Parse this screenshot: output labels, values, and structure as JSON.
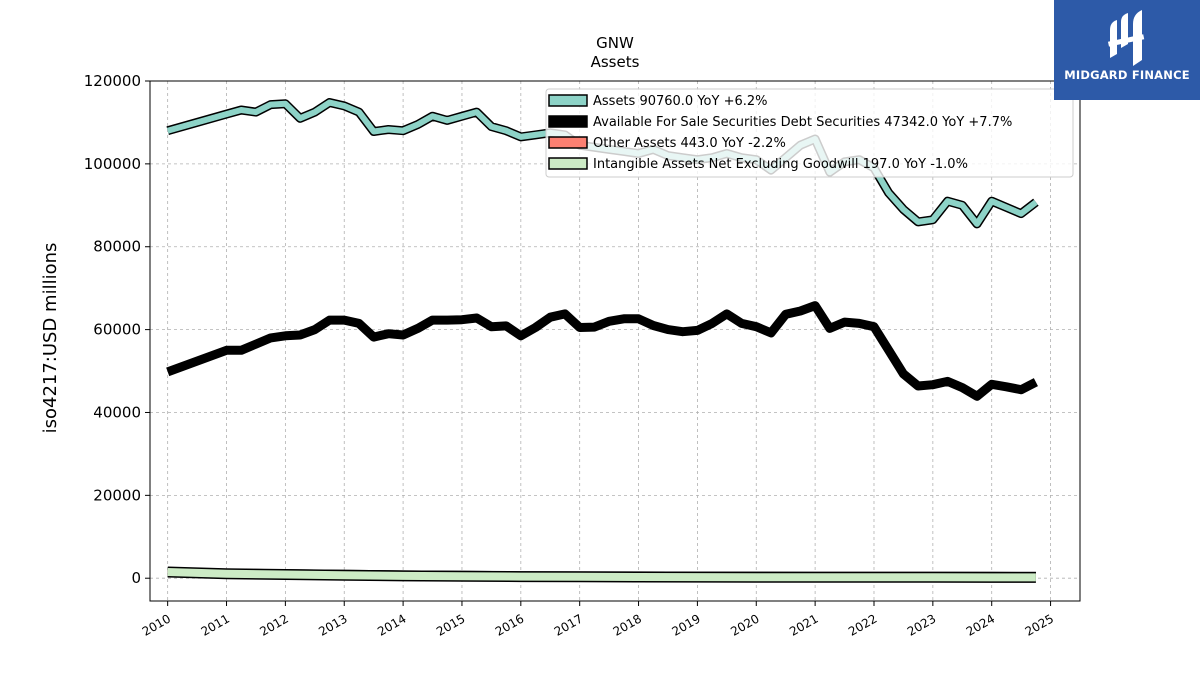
{
  "chart_data": {
    "type": "line",
    "title": "GNW",
    "subtitle": "Assets",
    "ylabel": "iso4217:USD  millions",
    "xlabel": "",
    "xlim": [
      2009.7,
      2025.5
    ],
    "ylim": [
      -5500,
      120000
    ],
    "yticks": [
      0,
      20000,
      40000,
      60000,
      80000,
      100000,
      120000
    ],
    "ytick_labels": [
      "0",
      "20000",
      "40000",
      "60000",
      "80000",
      "100000",
      "120000"
    ],
    "xticks": [
      2010,
      2011,
      2012,
      2013,
      2014,
      2015,
      2016,
      2017,
      2018,
      2019,
      2020,
      2021,
      2022,
      2023,
      2024,
      2025
    ],
    "xtick_labels": [
      "2010",
      "2011",
      "2012",
      "2013",
      "2014",
      "2015",
      "2016",
      "2017",
      "2018",
      "2019",
      "2020",
      "2021",
      "2022",
      "2023",
      "2024",
      "2025"
    ],
    "grid": true,
    "legend_position": "top-right",
    "series": [
      {
        "name": "Assets  90760.0 YoY +6.2%",
        "color": "#8dd3c7",
        "points": [
          [
            2010.0,
            108000
          ],
          [
            2011.0,
            112000
          ],
          [
            2011.25,
            113000
          ],
          [
            2011.5,
            112500
          ],
          [
            2011.75,
            114300
          ],
          [
            2012.0,
            114500
          ],
          [
            2012.25,
            111000
          ],
          [
            2012.5,
            112500
          ],
          [
            2012.75,
            114800
          ],
          [
            2013.0,
            114000
          ],
          [
            2013.25,
            112500
          ],
          [
            2013.5,
            107800
          ],
          [
            2013.75,
            108300
          ],
          [
            2014.0,
            108000
          ],
          [
            2014.25,
            109500
          ],
          [
            2014.5,
            111500
          ],
          [
            2014.75,
            110500
          ],
          [
            2015.0,
            111500
          ],
          [
            2015.25,
            112500
          ],
          [
            2015.5,
            109000
          ],
          [
            2015.75,
            108000
          ],
          [
            2016.0,
            106500
          ],
          [
            2016.25,
            107000
          ],
          [
            2016.5,
            107500
          ],
          [
            2016.75,
            107000
          ],
          [
            2017.0,
            104500
          ],
          [
            2017.25,
            104000
          ],
          [
            2017.5,
            103500
          ],
          [
            2017.75,
            103000
          ],
          [
            2018.0,
            102500
          ],
          [
            2018.25,
            103500
          ],
          [
            2018.5,
            102000
          ],
          [
            2018.75,
            101500
          ],
          [
            2019.0,
            101000
          ],
          [
            2019.25,
            101500
          ],
          [
            2019.5,
            102500
          ],
          [
            2019.75,
            101500
          ],
          [
            2020.0,
            101000
          ],
          [
            2020.25,
            98500
          ],
          [
            2020.5,
            101500
          ],
          [
            2020.75,
            104500
          ],
          [
            2021.0,
            106000
          ],
          [
            2021.25,
            98000
          ],
          [
            2021.5,
            100500
          ],
          [
            2021.75,
            101000
          ],
          [
            2022.0,
            99000
          ],
          [
            2022.25,
            93000
          ],
          [
            2022.5,
            89000
          ],
          [
            2022.75,
            86000
          ],
          [
            2023.0,
            86500
          ],
          [
            2023.25,
            91000
          ],
          [
            2023.5,
            90000
          ],
          [
            2023.75,
            85500
          ],
          [
            2024.0,
            91000
          ],
          [
            2024.25,
            89500
          ],
          [
            2024.5,
            88000
          ],
          [
            2024.75,
            90760
          ]
        ]
      },
      {
        "name": "Available For Sale Securities Debt Securities  47342.0 YoY +7.7%",
        "color": "#000000",
        "points": [
          [
            2010.0,
            49800
          ],
          [
            2011.0,
            55000
          ],
          [
            2011.25,
            55000
          ],
          [
            2011.5,
            56500
          ],
          [
            2011.75,
            58000
          ],
          [
            2012.0,
            58500
          ],
          [
            2012.25,
            58700
          ],
          [
            2012.5,
            60000
          ],
          [
            2012.75,
            62300
          ],
          [
            2013.0,
            62300
          ],
          [
            2013.25,
            61500
          ],
          [
            2013.5,
            58200
          ],
          [
            2013.75,
            59000
          ],
          [
            2014.0,
            58700
          ],
          [
            2014.25,
            60300
          ],
          [
            2014.5,
            62300
          ],
          [
            2014.75,
            62300
          ],
          [
            2015.0,
            62400
          ],
          [
            2015.25,
            62800
          ],
          [
            2015.5,
            60700
          ],
          [
            2015.75,
            60900
          ],
          [
            2016.0,
            58500
          ],
          [
            2016.25,
            60500
          ],
          [
            2016.5,
            63000
          ],
          [
            2016.75,
            63800
          ],
          [
            2017.0,
            60500
          ],
          [
            2017.25,
            60600
          ],
          [
            2017.5,
            62000
          ],
          [
            2017.75,
            62600
          ],
          [
            2018.0,
            62600
          ],
          [
            2018.25,
            61000
          ],
          [
            2018.5,
            60000
          ],
          [
            2018.75,
            59500
          ],
          [
            2019.0,
            59800
          ],
          [
            2019.25,
            61500
          ],
          [
            2019.5,
            63800
          ],
          [
            2019.75,
            61500
          ],
          [
            2020.0,
            60700
          ],
          [
            2020.25,
            59200
          ],
          [
            2020.5,
            63700
          ],
          [
            2020.75,
            64500
          ],
          [
            2021.0,
            65800
          ],
          [
            2021.25,
            60300
          ],
          [
            2021.5,
            61800
          ],
          [
            2021.75,
            61500
          ],
          [
            2022.0,
            60700
          ],
          [
            2022.25,
            55000
          ],
          [
            2022.5,
            49300
          ],
          [
            2022.75,
            46400
          ],
          [
            2023.0,
            46700
          ],
          [
            2023.25,
            47500
          ],
          [
            2023.5,
            46000
          ],
          [
            2023.75,
            43900
          ],
          [
            2024.0,
            46800
          ],
          [
            2024.25,
            46200
          ],
          [
            2024.5,
            45500
          ],
          [
            2024.75,
            47342
          ]
        ]
      },
      {
        "name": "Other Assets  443.0 YoY -2.2%",
        "color": "#fb8072",
        "points": [
          [
            2010.0,
            1400
          ],
          [
            2011.0,
            1200
          ],
          [
            2012.0,
            1100
          ],
          [
            2013.0,
            950
          ],
          [
            2014.0,
            800
          ],
          [
            2015.0,
            700
          ],
          [
            2016.0,
            600
          ],
          [
            2017.0,
            550
          ],
          [
            2018.0,
            550
          ],
          [
            2019.0,
            500
          ],
          [
            2020.0,
            500
          ],
          [
            2021.0,
            450
          ],
          [
            2022.0,
            450
          ],
          [
            2023.0,
            450
          ],
          [
            2024.0,
            450
          ],
          [
            2024.75,
            443
          ]
        ]
      },
      {
        "name": "Intangible Assets Net Excluding Goodwill  197.0 YoY -1.0%",
        "color": "#ccebc5",
        "points": [
          [
            2010.0,
            1500
          ],
          [
            2011.0,
            1100
          ],
          [
            2012.0,
            900
          ],
          [
            2013.0,
            700
          ],
          [
            2014.0,
            550
          ],
          [
            2015.0,
            450
          ],
          [
            2016.0,
            400
          ],
          [
            2017.0,
            350
          ],
          [
            2018.0,
            300
          ],
          [
            2019.0,
            280
          ],
          [
            2020.0,
            250
          ],
          [
            2021.0,
            230
          ],
          [
            2022.0,
            220
          ],
          [
            2023.0,
            210
          ],
          [
            2024.0,
            200
          ],
          [
            2024.75,
            197
          ]
        ]
      }
    ]
  },
  "logo": {
    "text": "MIDGARD FINANCE",
    "background": "#2d5aa8"
  }
}
